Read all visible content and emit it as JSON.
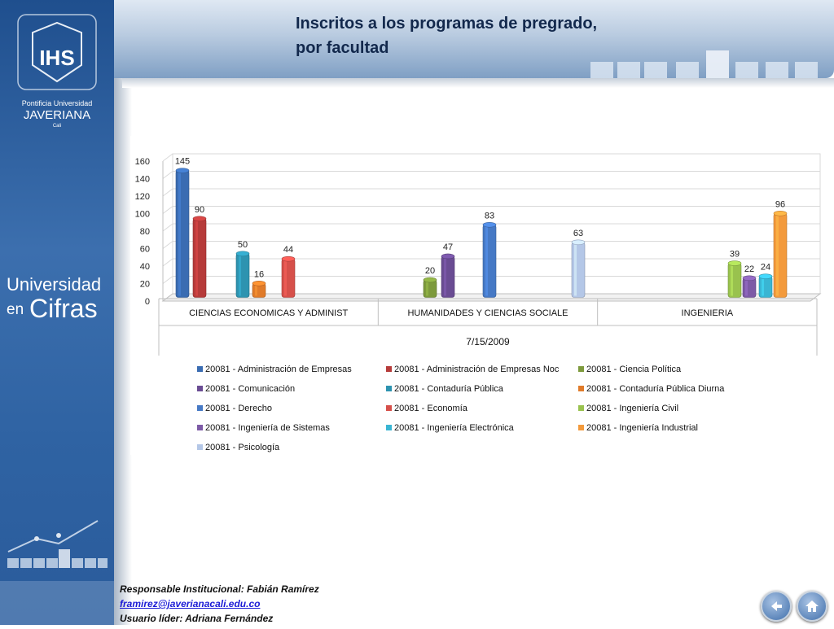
{
  "header": {
    "title_line1": "Inscritos a los programas de pregrado,",
    "title_line2": "por facultad"
  },
  "sidebar": {
    "logo_line1": "Pontificia Universidad",
    "logo_line2": "JAVERIANA",
    "logo_line3": "Cali",
    "brand_line1": "Universidad",
    "brand_en": "en",
    "brand_cifras": "Cifras"
  },
  "footer": {
    "responsable": "Responsable Institucional: Fabián Ramírez",
    "email": "framirez@javerianacali.edu.co",
    "usuario": "Usuario líder: Adriana Fernández"
  },
  "nav": {
    "back_icon": "back-arrow-icon",
    "home_icon": "home-icon"
  },
  "chart_data": {
    "type": "bar",
    "xlabel": "7/15/2009",
    "ylim": [
      0,
      160
    ],
    "yticks": [
      0,
      20,
      40,
      60,
      80,
      100,
      120,
      140,
      160
    ],
    "categories": [
      "CIENCIAS ECONOMICAS Y ADMINIST",
      "HUMANIDADES Y CIENCIAS SOCIALE",
      "INGENIERIA"
    ],
    "series": [
      {
        "name": "20081 - Administración de Empresas",
        "color": "#3a6cb2",
        "values": [
          145,
          null,
          null
        ]
      },
      {
        "name": "20081 - Administración de Empresas Noc",
        "color": "#b63b3a",
        "values": [
          90,
          null,
          null
        ]
      },
      {
        "name": "20081 - Ciencia Política",
        "color": "#7d9a3c",
        "values": [
          null,
          20,
          null
        ]
      },
      {
        "name": "20081 - Comunicación",
        "color": "#6a4c93",
        "values": [
          null,
          47,
          null
        ]
      },
      {
        "name": "20081 - Contaduría Pública",
        "color": "#2d93b0",
        "values": [
          50,
          null,
          null
        ]
      },
      {
        "name": "20081 - Contaduría Pública Diurna",
        "color": "#e07b2a",
        "values": [
          16,
          null,
          null
        ]
      },
      {
        "name": "20081 - Derecho",
        "color": "#4679c5",
        "values": [
          null,
          83,
          null
        ]
      },
      {
        "name": "20081 - Economía",
        "color": "#d6504a",
        "values": [
          44,
          null,
          null
        ]
      },
      {
        "name": "20081 - Ingeniería Civil",
        "color": "#99c24e",
        "values": [
          null,
          null,
          39
        ]
      },
      {
        "name": "20081 - Ingeniería de Sistemas",
        "color": "#7d5aa6",
        "values": [
          null,
          null,
          22
        ]
      },
      {
        "name": "20081 - Ingeniería Electrónica",
        "color": "#39b5d3",
        "values": [
          null,
          null,
          24
        ]
      },
      {
        "name": "20081 - Ingeniería Industrial",
        "color": "#f39a3c",
        "values": [
          null,
          null,
          96
        ]
      },
      {
        "name": "20081 - Psicología",
        "color": "#b4c7e7",
        "values": [
          null,
          63,
          null
        ]
      }
    ],
    "bar_order": [
      [
        0,
        1,
        4,
        5,
        7
      ],
      [
        2,
        3,
        6,
        12
      ],
      [
        8,
        9,
        10,
        11
      ]
    ]
  }
}
